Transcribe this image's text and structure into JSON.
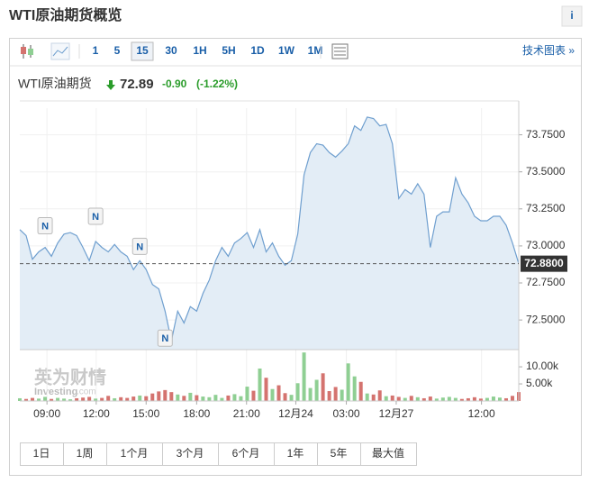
{
  "header": {
    "title": "WTI原油期货概览",
    "info": "i"
  },
  "toolbar": {
    "intervals": [
      "1",
      "5",
      "15",
      "30",
      "1H",
      "5H",
      "1D",
      "1W",
      "1M"
    ],
    "selected": "15",
    "link": "技术图表 »"
  },
  "quote": {
    "name": "WTI原油期货",
    "price": "72.89",
    "change": "-0.90",
    "change_pct": "(-1.22%)"
  },
  "watermark": {
    "cn": "英为财情",
    "en": "Investing",
    "suffix": ".com"
  },
  "chart_data": {
    "type": "line",
    "x": [
      0,
      1,
      2,
      3,
      4,
      5,
      6,
      7,
      8,
      9,
      10,
      11,
      12,
      13,
      14,
      15,
      16,
      17,
      18,
      19,
      20,
      21,
      22,
      23,
      24,
      25,
      26,
      27,
      28,
      29,
      30,
      31,
      32,
      33,
      34,
      35,
      36,
      37,
      38,
      39,
      40,
      41,
      42,
      43,
      44,
      45,
      46,
      47,
      48,
      49,
      50,
      51,
      52,
      53,
      54,
      55,
      56,
      57,
      58,
      59,
      60,
      61,
      62,
      63,
      64,
      65,
      66,
      67,
      68,
      69,
      70,
      71,
      72,
      73,
      74,
      75,
      76,
      77,
      78,
      79
    ],
    "series": [
      {
        "color": "#6f9fcf",
        "fill": "#e3edf6",
        "values": [
          73.11,
          73.07,
          72.91,
          72.96,
          72.99,
          72.93,
          73.02,
          73.08,
          73.09,
          73.07,
          72.99,
          72.9,
          73.03,
          72.99,
          72.96,
          73.01,
          72.96,
          72.93,
          72.84,
          72.9,
          72.84,
          72.74,
          72.71,
          72.56,
          72.36,
          72.56,
          72.48,
          72.59,
          72.56,
          72.68,
          72.77,
          72.9,
          72.99,
          72.93,
          73.02,
          73.05,
          73.09,
          72.99,
          73.11,
          72.96,
          73.02,
          72.93,
          72.87,
          72.9,
          73.08,
          73.48,
          73.63,
          73.69,
          73.68,
          73.63,
          73.6,
          73.64,
          73.69,
          73.81,
          73.78,
          73.87,
          73.86,
          73.81,
          73.82,
          73.69,
          73.32,
          73.38,
          73.35,
          73.42,
          73.35,
          72.99,
          73.2,
          73.23,
          73.23,
          73.46,
          73.35,
          73.29,
          73.2,
          73.17,
          73.17,
          73.2,
          73.2,
          73.14,
          73.02,
          72.88
        ]
      },
      {
        "axis": "y2",
        "up_color": "#8fcf93",
        "down_color": "#d4736f",
        "values": [
          800,
          600,
          900,
          700,
          1200,
          600,
          900,
          700,
          500,
          800,
          1000,
          1200,
          700,
          900,
          1500,
          800,
          1100,
          900,
          1300,
          1600,
          1400,
          2200,
          2800,
          3200,
          2600,
          1900,
          1500,
          2400,
          1700,
          1300,
          1100,
          1800,
          900,
          1600,
          2000,
          1400,
          4200,
          3000,
          9500,
          6800,
          3500,
          4600,
          2300,
          1800,
          5200,
          14200,
          3800,
          6200,
          8100,
          2900,
          4100,
          3300,
          11000,
          7200,
          5600,
          2200,
          1900,
          3100,
          1400,
          1600,
          1200,
          900,
          1500,
          1100,
          800,
          1300,
          700,
          1000,
          1200,
          900,
          600,
          800,
          1100,
          700,
          900,
          1300,
          1000,
          800,
          1500,
          2600
        ]
      }
    ],
    "xlim": [
      0,
      79
    ],
    "xticks": [
      {
        "value": 4.3,
        "label": "09:00"
      },
      {
        "value": 12.1,
        "label": "12:00"
      },
      {
        "value": 20,
        "label": "15:00"
      },
      {
        "value": 28,
        "label": "18:00"
      },
      {
        "value": 35.9,
        "label": "21:00"
      },
      {
        "value": 43.7,
        "label": "12月24"
      },
      {
        "value": 51.7,
        "label": "03:00"
      },
      {
        "value": 59.6,
        "label": "12月27"
      },
      {
        "value": 73.1,
        "label": "12:00"
      }
    ],
    "ylim": [
      72.3,
      73.93
    ],
    "yticks": [
      {
        "value": 72.5,
        "label": "72.5000"
      },
      {
        "value": 72.75,
        "label": "72.7500"
      },
      {
        "value": 73,
        "label": "73.0000"
      },
      {
        "value": 73.25,
        "label": "73.2500"
      },
      {
        "value": 73.5,
        "label": "73.5000"
      },
      {
        "value": 73.75,
        "label": "73.7500"
      }
    ],
    "y2lim": [
      0,
      14500
    ],
    "y2ticks": [
      {
        "value": 5000,
        "label": "5.00k"
      },
      {
        "value": 10000,
        "label": "10.00k"
      }
    ],
    "ref_line": {
      "value": 72.88,
      "label": "72.8800"
    },
    "annotations": [
      {
        "x": 4,
        "label": "N"
      },
      {
        "x": 12,
        "label": "N"
      },
      {
        "x": 19,
        "label": "N"
      },
      {
        "x": 23,
        "label": "N"
      }
    ],
    "grid": true
  },
  "ranges": [
    "1日",
    "1周",
    "1个月",
    "3个月",
    "6个月",
    "1年",
    "5年",
    "最大值"
  ]
}
